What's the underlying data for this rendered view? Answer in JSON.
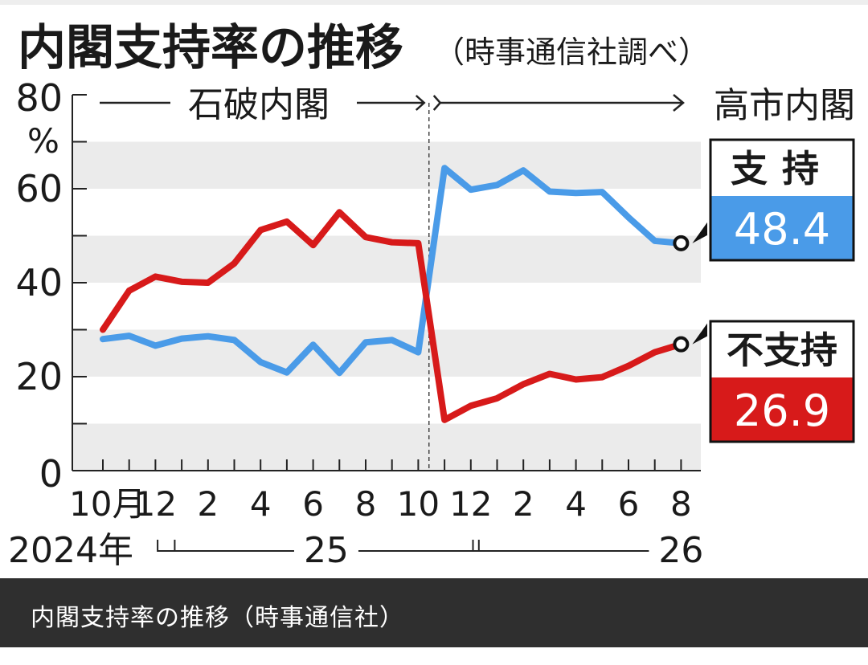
{
  "caption": "内閣支持率の推移（時事通信社）",
  "chart_data": {
    "type": "line",
    "title": "内閣支持率の推移",
    "subtitle": "（時事通信社調べ）",
    "ylabel": "%",
    "ylim": [
      0,
      80
    ],
    "yticks": [
      0,
      20,
      40,
      60,
      80
    ],
    "grid": "alternating bands",
    "x": [
      "2024-10",
      "2024-11",
      "2024-12",
      "2025-01",
      "2025-02",
      "2025-03",
      "2025-04",
      "2025-05",
      "2025-06",
      "2025-07",
      "2025-08",
      "2025-09",
      "2025-10",
      "2025-11",
      "2025-12",
      "2026-01",
      "2026-02",
      "2026-03",
      "2026-04",
      "2026-05",
      "2026-06",
      "2026-07",
      "2026-08"
    ],
    "xtick_labels": [
      {
        "x": "2024-10",
        "label": "10月"
      },
      {
        "x": "2024-12",
        "label": "12"
      },
      {
        "x": "2025-02",
        "label": "2"
      },
      {
        "x": "2025-04",
        "label": "4"
      },
      {
        "x": "2025-06",
        "label": "6"
      },
      {
        "x": "2025-08",
        "label": "8"
      },
      {
        "x": "2025-10",
        "label": "10"
      },
      {
        "x": "2025-12",
        "label": "12"
      },
      {
        "x": "2026-02",
        "label": "2"
      },
      {
        "x": "2026-04",
        "label": "4"
      },
      {
        "x": "2026-06",
        "label": "6"
      },
      {
        "x": "2026-08",
        "label": "8"
      }
    ],
    "year_labels": [
      {
        "label": "2024年",
        "from": "2024-10",
        "to": "2024-12"
      },
      {
        "label": "25",
        "from": "2025-01",
        "to": "2025-12"
      },
      {
        "label": "26",
        "from": "2026-01",
        "to": "2026-08"
      }
    ],
    "series": [
      {
        "name": "支持",
        "color": "#4a9be8",
        "values": [
          28.0,
          28.7,
          26.6,
          28.1,
          28.6,
          27.8,
          23.1,
          20.9,
          26.8,
          20.8,
          27.3,
          27.8,
          25.2,
          64.4,
          59.8,
          60.8,
          63.9,
          59.4,
          59.1,
          59.3,
          53.9,
          48.9,
          48.4
        ],
        "end_label": "48.4"
      },
      {
        "name": "不支持",
        "color": "#d71a1a",
        "values": [
          30.0,
          38.3,
          41.3,
          40.2,
          40.0,
          44.1,
          51.2,
          53.0,
          48.0,
          55.0,
          49.7,
          48.6,
          48.4,
          10.8,
          13.8,
          15.4,
          18.4,
          20.6,
          19.4,
          19.9,
          22.3,
          25.2,
          26.9
        ],
        "end_label": "26.9"
      }
    ],
    "annotations": {
      "period_before": "石破内閣",
      "period_after": "高市内閣",
      "divider_between": [
        "2025-10",
        "2025-11"
      ]
    }
  }
}
